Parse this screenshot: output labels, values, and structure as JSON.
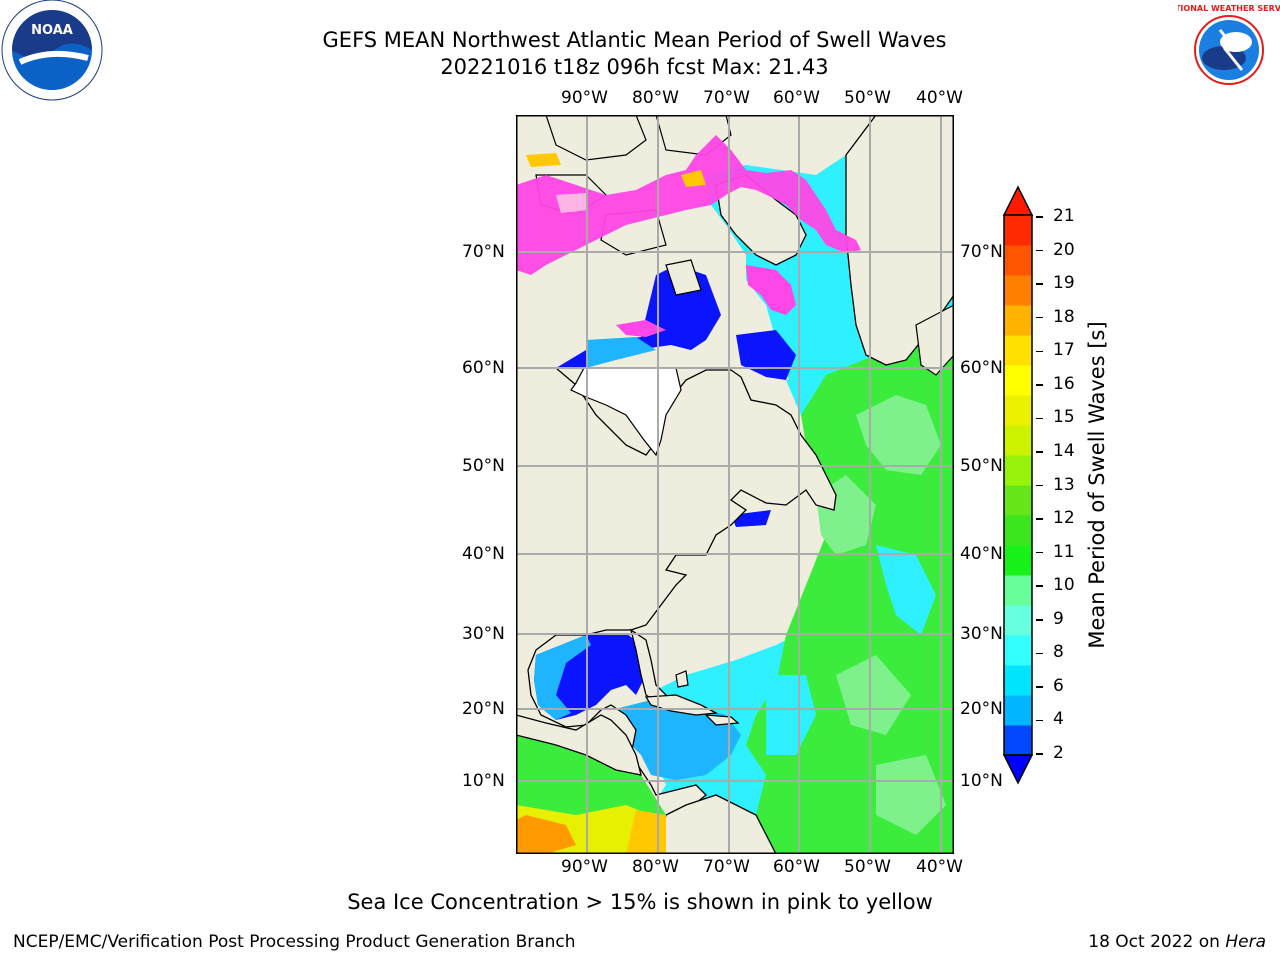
{
  "title_line1": "GEFS MEAN Northwest Atlantic Mean Period of Swell Waves",
  "title_line2": "20221016 t18z 096h fcst   Max: 21.43",
  "footer_note": "Sea Ice Concentration > 15% is shown in pink to yellow",
  "credit_left": "NCEP/EMC/Verification Post Processing Product Generation Branch",
  "credit_right_date": "18 Oct 2022 on",
  "credit_right_host": "Hera",
  "logos": {
    "noaa": "NOAA",
    "nws": "NATIONAL WEATHER SERVICE"
  },
  "lon_labels": [
    "90°W",
    "80°W",
    "70°W",
    "60°W",
    "50°W",
    "40°W"
  ],
  "lat_labels": [
    "70°N",
    "60°N",
    "50°N",
    "40°N",
    "30°N",
    "20°N",
    "10°N"
  ],
  "colorbar": {
    "title": "Mean Period of Swell Waves [s]",
    "ticks": [
      "21",
      "20",
      "19",
      "18",
      "17",
      "16",
      "15",
      "14",
      "13",
      "12",
      "11",
      "10",
      "9",
      "8",
      "6",
      "4",
      "2"
    ],
    "colors": [
      "#0047ff",
      "#00b6ff",
      "#00e5ff",
      "#33ffff",
      "#66ffe0",
      "#66ff99",
      "#19f219",
      "#3ce61e",
      "#66e619",
      "#99f20a",
      "#ccf200",
      "#ebf200",
      "#ffff00",
      "#ffe000",
      "#ffb300",
      "#ff8000",
      "#ff5500",
      "#ff2a00"
    ],
    "under_color": "#0000ff",
    "over_color": "#ff1a00"
  },
  "map_colors": {
    "land": "#efedde",
    "swell_short": "#0a14ff",
    "swell_medium": "#1eb4ff",
    "swell_cyan": "#2ef0ff",
    "swell_green": "#3cec3c",
    "swell_lightgreen": "#7ef08c",
    "swell_yellow": "#e6f000",
    "ice": "#ff46e6"
  }
}
